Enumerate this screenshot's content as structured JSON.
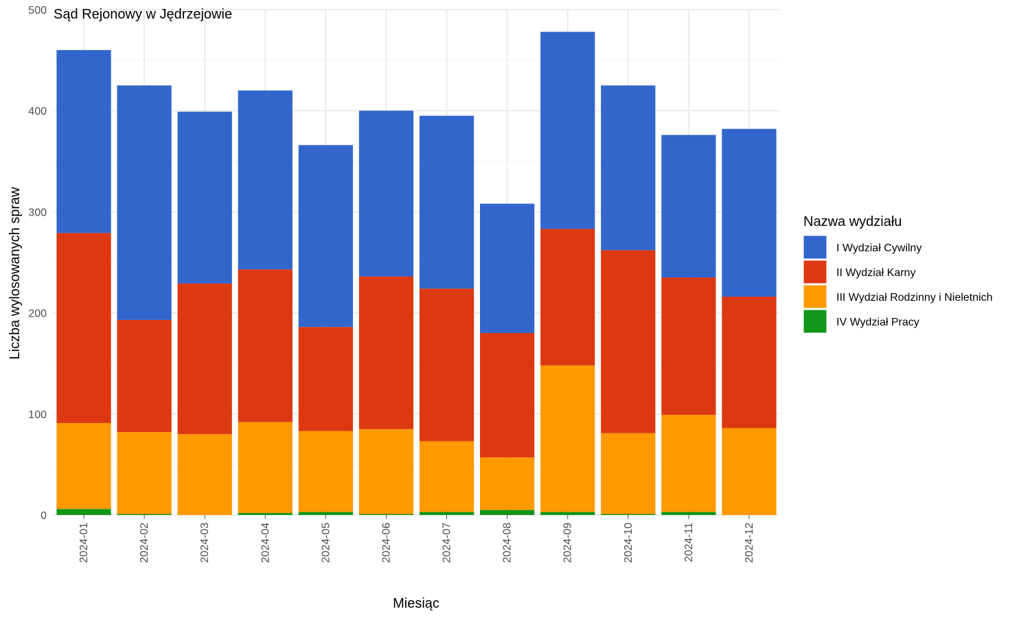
{
  "chart_data": {
    "type": "bar",
    "stacked": true,
    "title": "",
    "subtitle": "Sąd Rejonowy w Jędrzejowie",
    "xlabel": "Miesiąc",
    "ylabel": "Liczba wylosowanych spraw",
    "ylim": [
      0,
      500
    ],
    "yticks": [
      0,
      100,
      200,
      300,
      400,
      500
    ],
    "grid": true,
    "legend_position": "right",
    "legend_title": "Nazwa wydziału",
    "categories": [
      "2024-01",
      "2024-02",
      "2024-03",
      "2024-04",
      "2024-05",
      "2024-06",
      "2024-07",
      "2024-08",
      "2024-09",
      "2024-10",
      "2024-11",
      "2024-12"
    ],
    "series": [
      {
        "name": "IV Wydział Pracy",
        "color": "#109618",
        "values": [
          6,
          1,
          0,
          2,
          3,
          1,
          3,
          5,
          3,
          1,
          3,
          0
        ]
      },
      {
        "name": "III Wydział Rodzinny i Nieletnich",
        "color": "#FF9900",
        "values": [
          85,
          81,
          80,
          90,
          80,
          84,
          70,
          52,
          145,
          80,
          96,
          86
        ]
      },
      {
        "name": "II Wydział Karny",
        "color": "#DC3912",
        "values": [
          188,
          111,
          149,
          151,
          103,
          151,
          151,
          123,
          135,
          181,
          136,
          130
        ]
      },
      {
        "name": "I Wydział Cywilny",
        "color": "#3366CC",
        "values": [
          181,
          232,
          170,
          177,
          180,
          164,
          171,
          128,
          195,
          163,
          141,
          166
        ]
      }
    ],
    "legend_order": [
      "I Wydział Cywilny",
      "II Wydział Karny",
      "III Wydział Rodzinny i Nieletnich",
      "IV Wydział Pracy"
    ]
  }
}
